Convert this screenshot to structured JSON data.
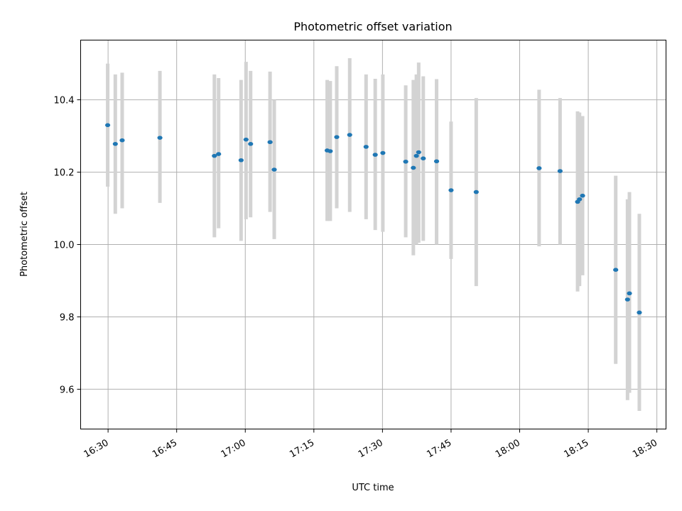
{
  "chart_data": {
    "type": "scatter",
    "title": "Photometric offset variation",
    "xlabel": "UTC time",
    "ylabel": "Photometric offset",
    "xlim": [
      "16:24",
      "18:32"
    ],
    "ylim": [
      9.49,
      10.565
    ],
    "grid": true,
    "x_ticks": [
      "16:30",
      "16:45",
      "17:00",
      "17:15",
      "17:30",
      "17:45",
      "18:00",
      "18:15",
      "18:30"
    ],
    "y_ticks": [
      9.6,
      9.8,
      10.0,
      10.2,
      10.4
    ],
    "y_tick_labels": [
      "9.6",
      "9.8",
      "10.0",
      "10.2",
      "10.4"
    ],
    "series": [
      {
        "marker_color": "#1f77b4",
        "errorbar_color": "#d3d3d3",
        "points": [
          {
            "time": "16:29:55",
            "y": 10.33,
            "ylow": 10.16,
            "yhigh": 10.5
          },
          {
            "time": "16:31:35",
            "y": 10.278,
            "ylow": 10.085,
            "yhigh": 10.47
          },
          {
            "time": "16:33:05",
            "y": 10.288,
            "ylow": 10.1,
            "yhigh": 10.475
          },
          {
            "time": "16:41:20",
            "y": 10.295,
            "ylow": 10.115,
            "yhigh": 10.48
          },
          {
            "time": "16:53:15",
            "y": 10.245,
            "ylow": 10.02,
            "yhigh": 10.47
          },
          {
            "time": "16:54:10",
            "y": 10.25,
            "ylow": 10.045,
            "yhigh": 10.46
          },
          {
            "time": "16:59:05",
            "y": 10.233,
            "ylow": 10.01,
            "yhigh": 10.455
          },
          {
            "time": "17:00:10",
            "y": 10.29,
            "ylow": 10.07,
            "yhigh": 10.505
          },
          {
            "time": "17:01:10",
            "y": 10.278,
            "ylow": 10.075,
            "yhigh": 10.48
          },
          {
            "time": "17:05:25",
            "y": 10.283,
            "ylow": 10.09,
            "yhigh": 10.478
          },
          {
            "time": "17:06:20",
            "y": 10.207,
            "ylow": 10.015,
            "yhigh": 10.4
          },
          {
            "time": "17:17:55",
            "y": 10.26,
            "ylow": 10.065,
            "yhigh": 10.455
          },
          {
            "time": "17:18:35",
            "y": 10.258,
            "ylow": 10.065,
            "yhigh": 10.452
          },
          {
            "time": "17:20:00",
            "y": 10.297,
            "ylow": 10.1,
            "yhigh": 10.493
          },
          {
            "time": "17:22:50",
            "y": 10.303,
            "ylow": 10.09,
            "yhigh": 10.515
          },
          {
            "time": "17:26:25",
            "y": 10.27,
            "ylow": 10.07,
            "yhigh": 10.47
          },
          {
            "time": "17:28:25",
            "y": 10.248,
            "ylow": 10.04,
            "yhigh": 10.458
          },
          {
            "time": "17:30:05",
            "y": 10.253,
            "ylow": 10.035,
            "yhigh": 10.47
          },
          {
            "time": "17:35:05",
            "y": 10.229,
            "ylow": 10.02,
            "yhigh": 10.44
          },
          {
            "time": "17:36:45",
            "y": 10.212,
            "ylow": 9.97,
            "yhigh": 10.455
          },
          {
            "time": "17:37:25",
            "y": 10.245,
            "ylow": 10.0,
            "yhigh": 10.47
          },
          {
            "time": "17:37:55",
            "y": 10.255,
            "ylow": 10.005,
            "yhigh": 10.503
          },
          {
            "time": "17:38:55",
            "y": 10.238,
            "ylow": 10.01,
            "yhigh": 10.465
          },
          {
            "time": "17:41:50",
            "y": 10.23,
            "ylow": 10.0,
            "yhigh": 10.457
          },
          {
            "time": "17:45:00",
            "y": 10.15,
            "ylow": 9.96,
            "yhigh": 10.34
          },
          {
            "time": "17:50:30",
            "y": 10.145,
            "ylow": 9.885,
            "yhigh": 10.405
          },
          {
            "time": "18:04:15",
            "y": 10.211,
            "ylow": 9.995,
            "yhigh": 10.428
          },
          {
            "time": "18:08:50",
            "y": 10.203,
            "ylow": 10.0,
            "yhigh": 10.405
          },
          {
            "time": "18:12:40",
            "y": 10.118,
            "ylow": 9.87,
            "yhigh": 10.368
          },
          {
            "time": "18:13:05",
            "y": 10.125,
            "ylow": 9.885,
            "yhigh": 10.365
          },
          {
            "time": "18:13:45",
            "y": 10.135,
            "ylow": 9.915,
            "yhigh": 10.355
          },
          {
            "time": "18:21:00",
            "y": 9.93,
            "ylow": 9.67,
            "yhigh": 10.19
          },
          {
            "time": "18:23:35",
            "y": 9.848,
            "ylow": 9.57,
            "yhigh": 10.125
          },
          {
            "time": "18:24:00",
            "y": 9.865,
            "ylow": 9.59,
            "yhigh": 10.145
          },
          {
            "time": "18:26:10",
            "y": 9.812,
            "ylow": 9.54,
            "yhigh": 10.085
          }
        ]
      }
    ]
  }
}
